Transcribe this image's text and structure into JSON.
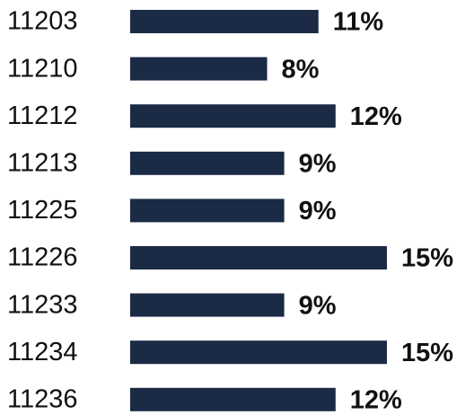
{
  "chart_data": {
    "type": "bar",
    "categories": [
      "11203",
      "11210",
      "11212",
      "11213",
      "11225",
      "11226",
      "11233",
      "11234",
      "11236"
    ],
    "values": [
      11,
      8,
      12,
      9,
      9,
      15,
      9,
      15,
      12
    ],
    "value_labels": [
      "11%",
      "8%",
      "12%",
      "9%",
      "9%",
      "15%",
      "9%",
      "15%",
      "12%"
    ],
    "color": "#1b2a45"
  }
}
